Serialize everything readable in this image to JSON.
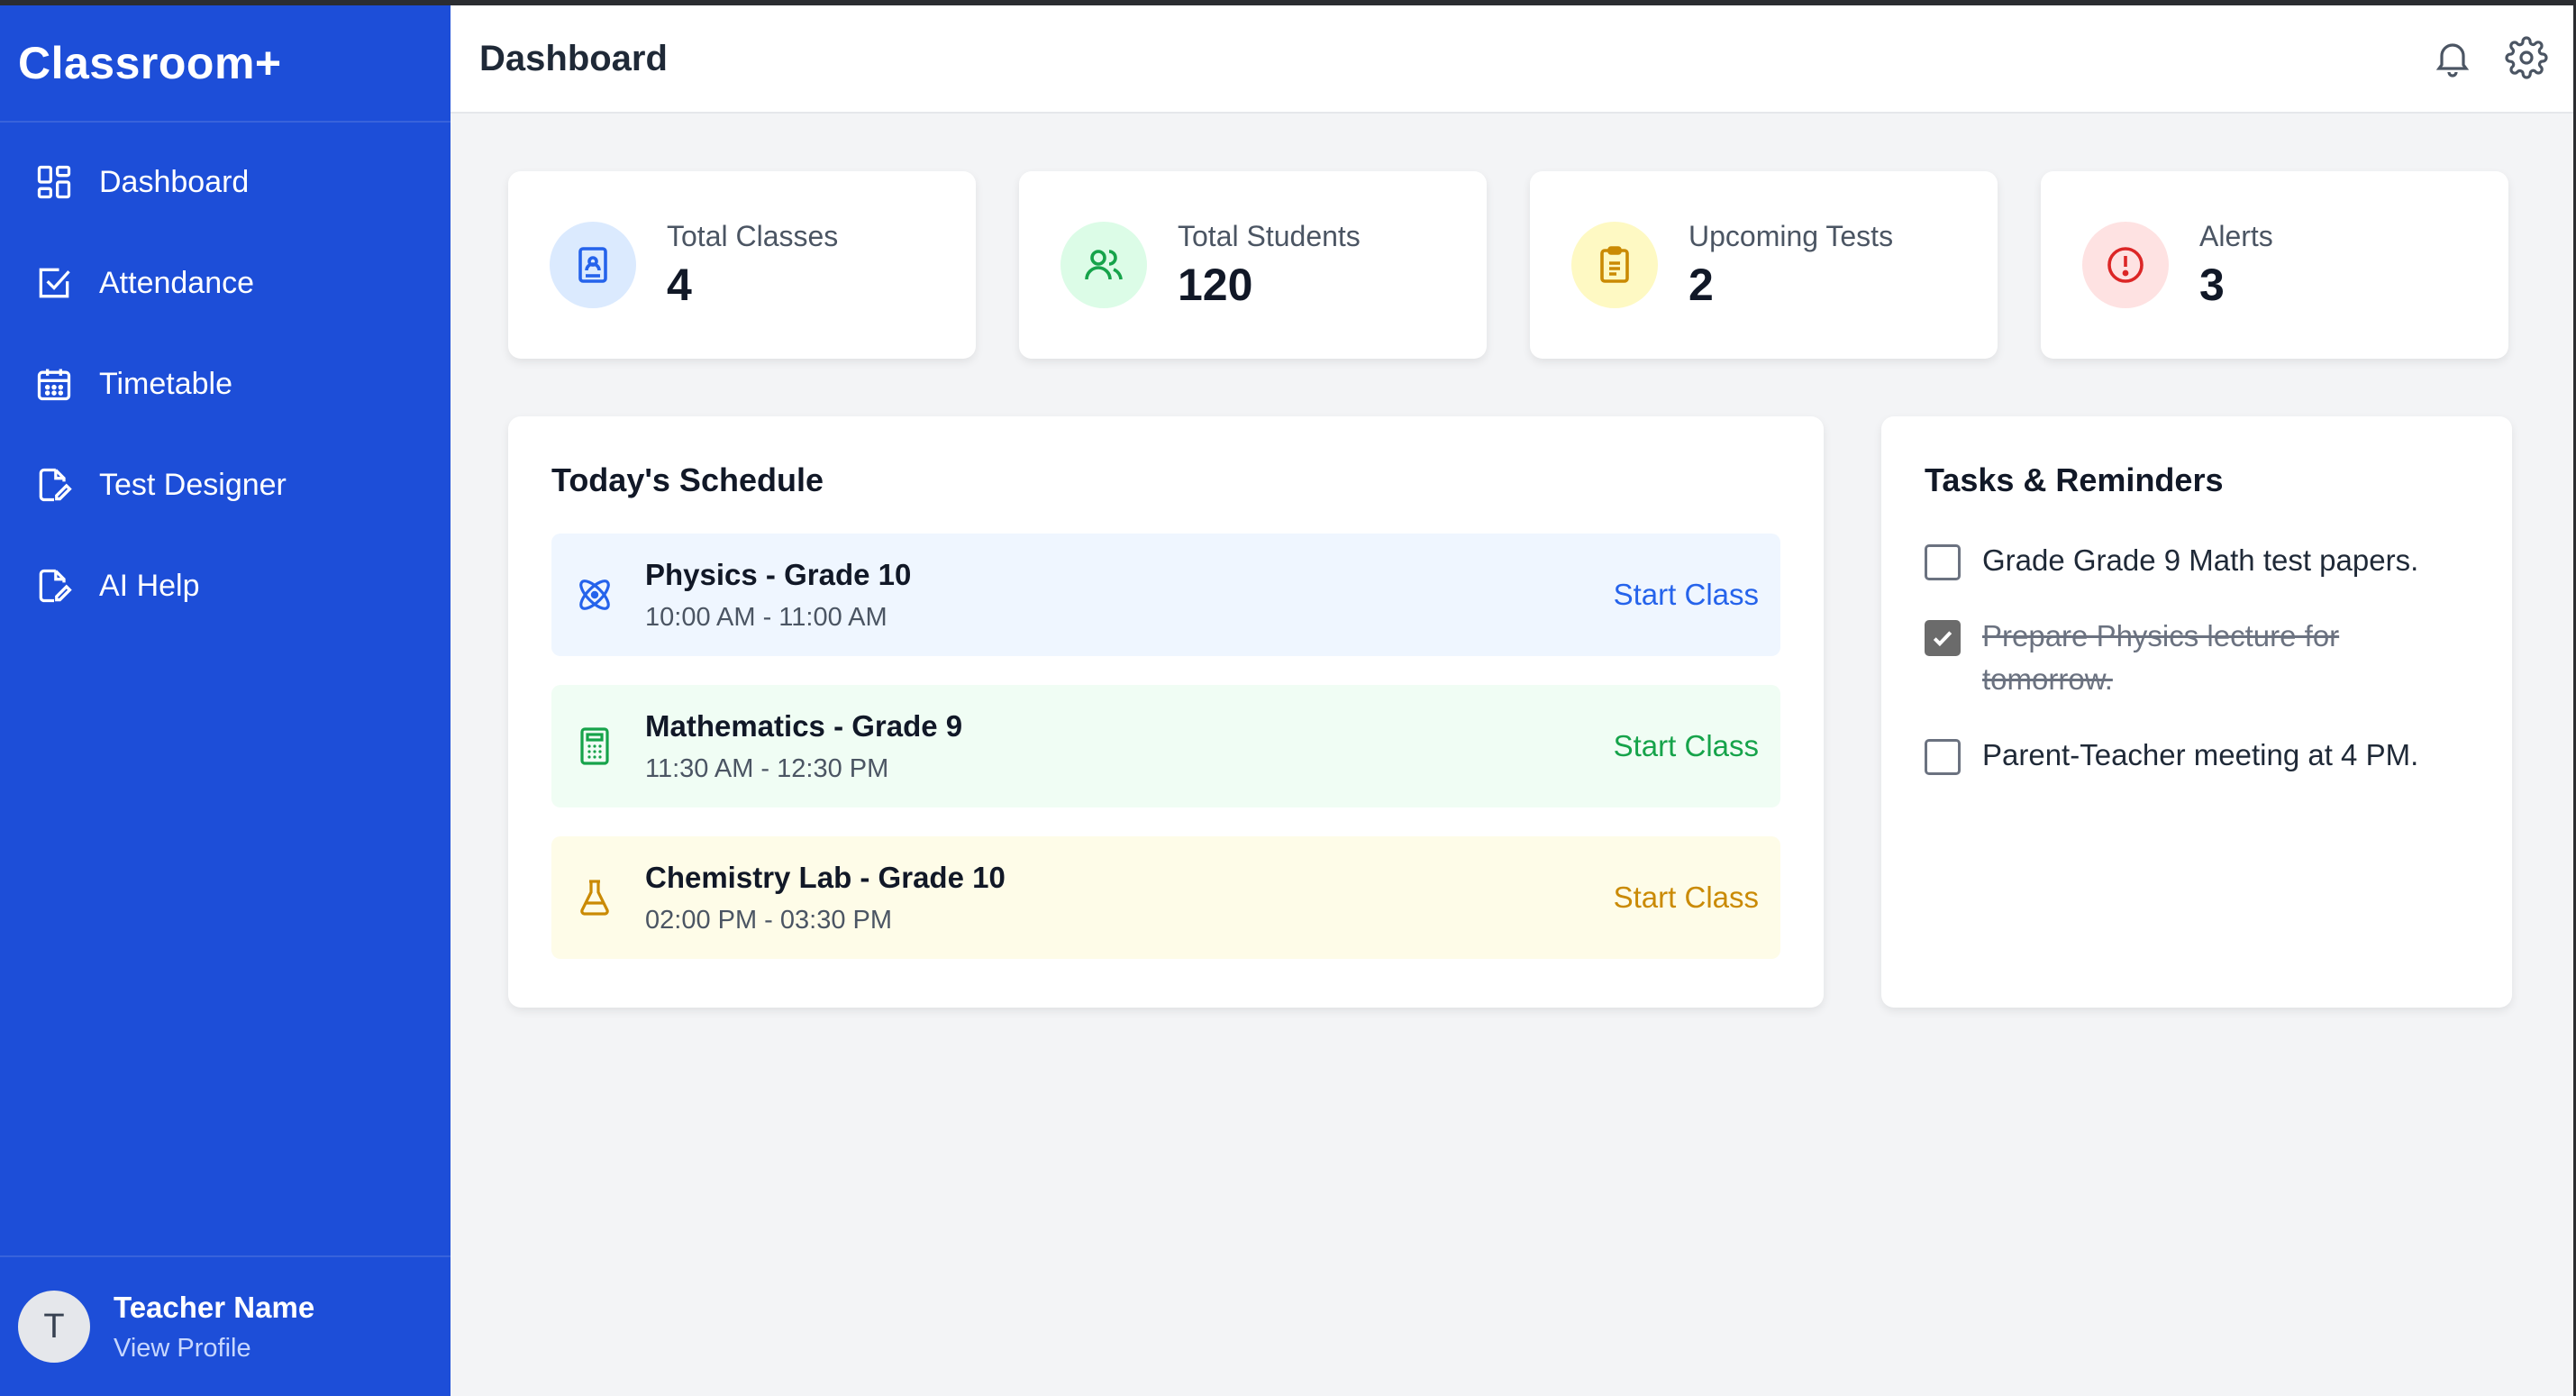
{
  "sidebar": {
    "brand": "Classroom+",
    "items": [
      {
        "label": "Dashboard",
        "icon": "grid-icon"
      },
      {
        "label": "Attendance",
        "icon": "check-square-icon"
      },
      {
        "label": "Timetable",
        "icon": "calendar-icon"
      },
      {
        "label": "Test Designer",
        "icon": "edit-document-icon"
      },
      {
        "label": "AI Help",
        "icon": "edit-document-icon"
      }
    ],
    "profile": {
      "initial": "T",
      "name": "Teacher Name",
      "link": "View Profile"
    }
  },
  "header": {
    "title": "Dashboard"
  },
  "stats": [
    {
      "label": "Total Classes",
      "value": "4",
      "icon": "book-icon",
      "color": "#2563eb",
      "bg": "#dbeafe"
    },
    {
      "label": "Total Students",
      "value": "120",
      "icon": "users-icon",
      "color": "#16a34a",
      "bg": "#dcfce7"
    },
    {
      "label": "Upcoming Tests",
      "value": "2",
      "icon": "clipboard-icon",
      "color": "#ca8a04",
      "bg": "#fef9c3"
    },
    {
      "label": "Alerts",
      "value": "3",
      "icon": "alert-icon",
      "color": "#dc2626",
      "bg": "#fee2e2"
    }
  ],
  "schedule": {
    "title": "Today's Schedule",
    "classes": [
      {
        "name": "Physics - Grade 10",
        "time": "10:00 AM - 11:00 AM",
        "action": "Start Class",
        "icon": "atom-icon",
        "color": "#2563eb",
        "bg": "#eff6ff"
      },
      {
        "name": "Mathematics - Grade 9",
        "time": "11:30 AM - 12:30 PM",
        "action": "Start Class",
        "icon": "calculator-icon",
        "color": "#16a34a",
        "bg": "#f0fdf4"
      },
      {
        "name": "Chemistry Lab - Grade 10",
        "time": "02:00 PM - 03:30 PM",
        "action": "Start Class",
        "icon": "flask-icon",
        "color": "#ca8a04",
        "bg": "#fefce8"
      }
    ]
  },
  "tasks": {
    "title": "Tasks & Reminders",
    "items": [
      {
        "text": "Grade Grade 9 Math test papers.",
        "done": false
      },
      {
        "text": "Prepare Physics lecture for tomorrow.",
        "done": true
      },
      {
        "text": "Parent-Teacher meeting at 4 PM.",
        "done": false
      }
    ]
  }
}
